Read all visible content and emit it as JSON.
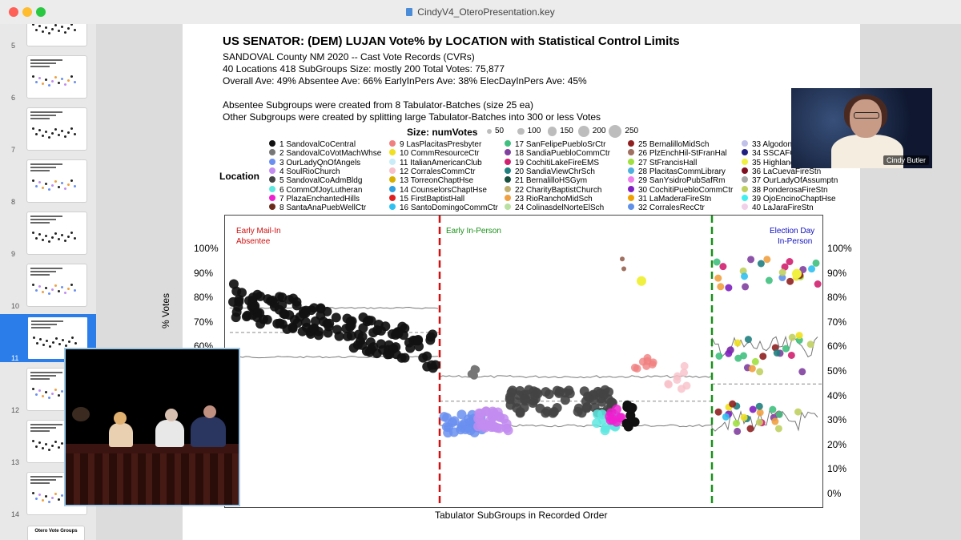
{
  "window": {
    "title": "CindyV4_OteroPresentation.key"
  },
  "sidebar": {
    "slides": [
      {
        "num": "5"
      },
      {
        "num": "6"
      },
      {
        "num": "7"
      },
      {
        "num": "8"
      },
      {
        "num": "9"
      },
      {
        "num": "10"
      },
      {
        "num": "11",
        "selected": true
      },
      {
        "num": "12"
      },
      {
        "num": "13"
      },
      {
        "num": "14"
      }
    ],
    "last_thumb_text": "Otero Vote Groups"
  },
  "slide": {
    "title": "US SENATOR:  (DEM) LUJAN Vote% by LOCATION with Statistical Control Limits",
    "line1": "SANDOVAL County NM 2020 -- Cast Vote Records (CVRs)",
    "line2": "40 Locations    418 SubGroups     Size: mostly 200     Total Votes: 75,877",
    "line3": "Overall Ave: 49%     Absentee Ave: 66%   EarlyInPers Ave: 38%     ElecDayInPers Ave: 45%",
    "line4": "Absentee Subgroups were created from 8 Tabulator-Batches (size 25 ea)",
    "line5": "Other Subgroups were created by splitting large Tabulator-Batches into 300 or less Votes",
    "size_label": "Size: numVotes",
    "sizes": [
      "50",
      "100",
      "150",
      "200",
      "250"
    ],
    "location_label": "Location"
  },
  "legend": [
    {
      "label": "1 SandovalCoCentral",
      "color": "#111111"
    },
    {
      "label": "2 SandovalCoVotMachWhse",
      "color": "#777777"
    },
    {
      "label": "3 OurLadyQnOfAngels",
      "color": "#6a8ff0"
    },
    {
      "label": "4 SoulRioChurch",
      "color": "#c28cf0"
    },
    {
      "label": "5 SandovalCoAdmBldg",
      "color": "#444444"
    },
    {
      "label": "6 CommOfJoyLutheran",
      "color": "#5ee8e0"
    },
    {
      "label": "7 PlazaEnchantedHills",
      "color": "#f020d0"
    },
    {
      "label": "8 SantaAnaPuebWellCtr",
      "color": "#6b2b1a"
    },
    {
      "label": "9 LasPlacitasPresbyter",
      "color": "#f08080"
    },
    {
      "label": "10 CommResourceCtr",
      "color": "#f0e020"
    },
    {
      "label": "11 ItalianAmericanClub",
      "color": "#c8ecf8"
    },
    {
      "label": "12 CorralesCommCtr",
      "color": "#f8c0c8"
    },
    {
      "label": "13 TorreonChaptHse",
      "color": "#d8b000"
    },
    {
      "label": "14 CounselorsChaptHse",
      "color": "#30a0e0"
    },
    {
      "label": "15 FirstBaptistHall",
      "color": "#e02020"
    },
    {
      "label": "16 SantoDomingoCommCtr",
      "color": "#30c0f0"
    },
    {
      "label": "17 SanFelipePuebloSrCtr",
      "color": "#40c080"
    },
    {
      "label": "18 SandiaPuebloCommCtr",
      "color": "#8040a0"
    },
    {
      "label": "19 CochitiLakeFireEMS",
      "color": "#d02070"
    },
    {
      "label": "20 SandiaViewChrSch",
      "color": "#208080"
    },
    {
      "label": "21 BernalilloHSGym",
      "color": "#185040"
    },
    {
      "label": "22 CharityBaptistChurch",
      "color": "#c0b070"
    },
    {
      "label": "23 RioRanchoMidSch",
      "color": "#f0a040"
    },
    {
      "label": "24 ColinasdelNorteElSch",
      "color": "#b8e0a0"
    },
    {
      "label": "25 BernalilloMidSch",
      "color": "#902020"
    },
    {
      "label": "26 PlzEnchHil-StFranHal",
      "color": "#a07060"
    },
    {
      "label": "27 StFrancisHall",
      "color": "#a0e040"
    },
    {
      "label": "28 PlacitasCommLibrary",
      "color": "#50b0e0"
    },
    {
      "label": "29 SanYsidroPubSafRm",
      "color": "#f080f0"
    },
    {
      "label": "30 CochitiPuebloCommCtr",
      "color": "#8020c0"
    },
    {
      "label": "31 LaMaderaFireStn",
      "color": "#f0a000"
    },
    {
      "label": "32 CorralesRecCtr",
      "color": "#6090e8"
    },
    {
      "label": "33 AlgodonesElSch",
      "color": "#c0c0e8"
    },
    {
      "label": "34 SSCAFCA",
      "color": "#202080"
    },
    {
      "label": "35 HighlandUMC",
      "color": "#f0f040"
    },
    {
      "label": "36 LaCuevaFireStn",
      "color": "#801020"
    },
    {
      "label": "37 OurLadyOfAssumptn",
      "color": "#a8a8a8"
    },
    {
      "label": "38 PonderosaFireStn",
      "color": "#c0d060"
    },
    {
      "label": "39 OjoEncinoChaptHse",
      "color": "#40f0f0"
    },
    {
      "label": "40 LaJaraFireStn",
      "color": "#f0d0e8"
    }
  ],
  "chart_data": {
    "type": "scatter",
    "title": "US SENATOR:  (DEM) LUJAN Vote% by LOCATION with Statistical Control Limits",
    "xlabel": "Tabulator SubGroups in Recorded Order",
    "ylabel": "% Votes",
    "y_ticks": [
      "100%",
      "90%",
      "80%",
      "70%",
      "60%",
      "50%",
      "40%",
      "30%",
      "20%",
      "10%",
      "0%"
    ],
    "y_ticks_left": [
      "100%",
      "90%",
      "80%",
      "70%",
      "60%"
    ],
    "ylim": [
      0,
      100
    ],
    "sections": [
      {
        "label": "Early Mail-In",
        "sub": "Absentee",
        "color": "#d01010",
        "mean": 66
      },
      {
        "label": "Early In-Person",
        "sub": "",
        "color": "#189018",
        "mean": 38
      },
      {
        "label": "Election Day",
        "sub": "In-Person",
        "color": "#1010c0",
        "mean": 45
      }
    ],
    "series": [
      {
        "name": "1 SandovalCoCentral",
        "approx_range": [
          50,
          85
        ]
      },
      {
        "name": "5 SandovalCoAdmBldg",
        "approx_range": [
          33,
          42
        ]
      },
      {
        "name": "3 OurLadyQnOfAngels",
        "approx_range": [
          27,
          33
        ]
      },
      {
        "name": "4 SoulRioChurch",
        "approx_range": [
          28,
          33
        ]
      }
    ],
    "grid": false,
    "legend_position": "top"
  },
  "presenter": {
    "name": "Cindy Butler"
  }
}
